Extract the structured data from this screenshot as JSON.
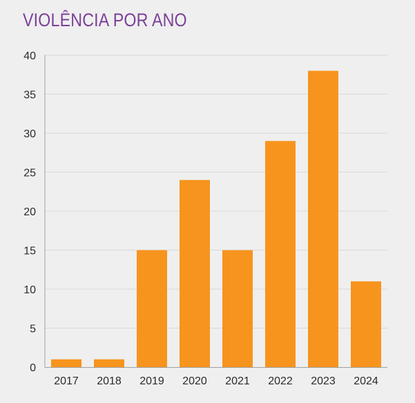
{
  "chart_data": {
    "type": "bar",
    "title": "VIOLÊNCIA POR ANO",
    "xlabel": "",
    "ylabel": "",
    "categories": [
      "2017",
      "2018",
      "2019",
      "2020",
      "2021",
      "2022",
      "2023",
      "2024"
    ],
    "values": [
      1,
      1,
      15,
      24,
      15,
      29,
      38,
      11
    ],
    "ylim": [
      0,
      40
    ],
    "yticks": [
      0,
      5,
      10,
      15,
      20,
      25,
      30,
      35,
      40
    ],
    "grid": true,
    "legend": "none",
    "colors": {
      "bar": "#f7941e",
      "title": "#7b3f98",
      "grid": "#d9d9d9",
      "axis": "#a0a0a0",
      "text": "#2b2b2b",
      "background": "#efefef"
    }
  }
}
